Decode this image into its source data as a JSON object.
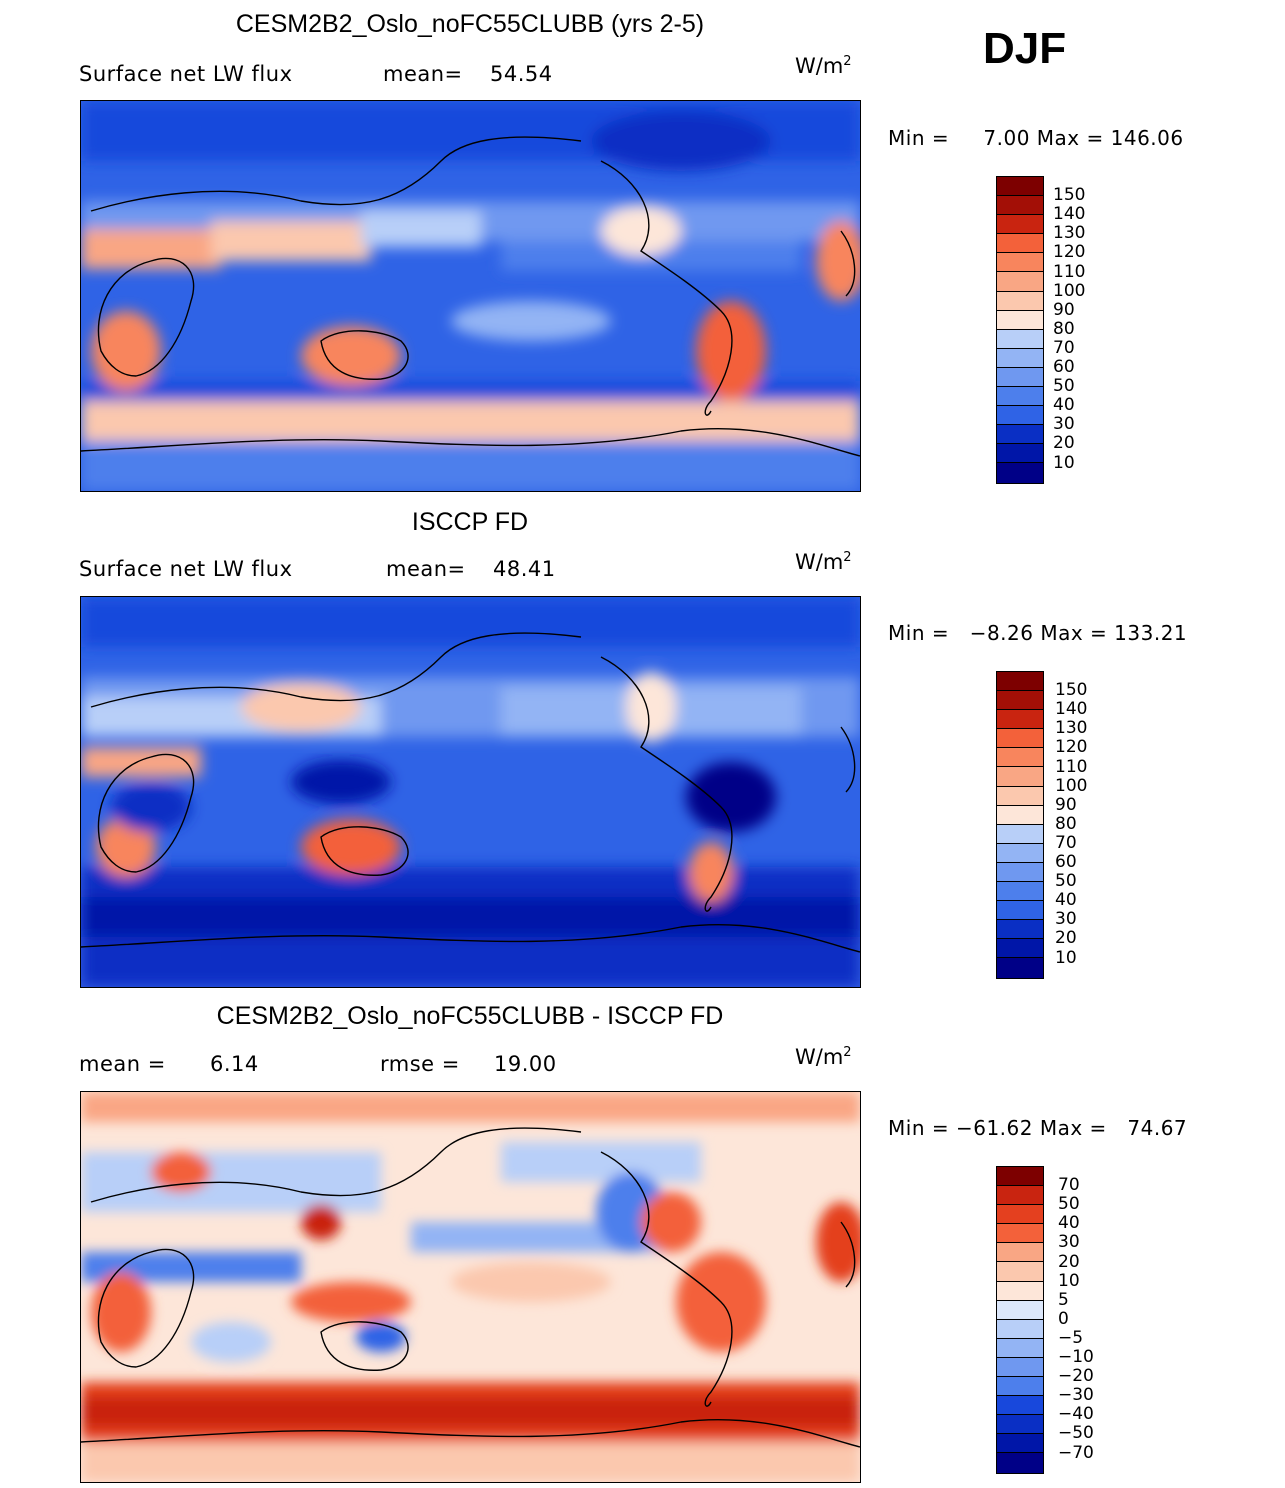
{
  "season": "DJF",
  "units_base": "W/m",
  "units_exp": "2",
  "palette_pos": [
    "#000087",
    "#0016a8",
    "#0a2fc4",
    "#1848dc",
    "#2f63e6",
    "#4d7fec",
    "#6f98f0",
    "#93b4f4",
    "#b8cff8",
    "#dde8fb",
    "#fde6d9",
    "#fbc8ae",
    "#f9a684",
    "#f8855d",
    "#f3613a",
    "#e4401f",
    "#c92410",
    "#a30f06",
    "#7d0000"
  ],
  "palette_diff": [
    "#000087",
    "#0016a8",
    "#0a2fc4",
    "#1848dc",
    "#2f63e6",
    "#4d7fec",
    "#6f98f0",
    "#93b4f4",
    "#b8cff8",
    "#dde8fb",
    "#fde6d9",
    "#fbc8ae",
    "#f9a684",
    "#f8855d",
    "#f3613a",
    "#e4401f",
    "#c92410",
    "#7d0000"
  ],
  "panels": [
    {
      "title": "CESM2B2_Oslo_noFC55CLUBB (yrs 2-5)",
      "left_label": "Surface net LW flux",
      "mean_label": "mean=",
      "mean_value": "54.54",
      "min_label": "Min =",
      "min_value": "7.00",
      "max_label": "Max =",
      "max_value": "146.06",
      "levels": [
        "150",
        "140",
        "130",
        "120",
        "110",
        "100",
        "90",
        "80",
        "70",
        "60",
        "50",
        "40",
        "30",
        "20",
        "10"
      ]
    },
    {
      "title": "ISCCP FD",
      "left_label": "Surface net LW flux",
      "mean_label": "mean=",
      "mean_value": "48.41",
      "min_label": "Min =",
      "min_value": "−8.26",
      "max_label": "Max =",
      "max_value": "133.21",
      "levels": [
        "150",
        "140",
        "130",
        "120",
        "110",
        "100",
        "90",
        "80",
        "70",
        "60",
        "50",
        "40",
        "30",
        "20",
        "10"
      ]
    },
    {
      "title": "CESM2B2_Oslo_noFC55CLUBB - ISCCP FD",
      "mean_label": "mean =",
      "mean_value": "6.14",
      "rmse_label": "rmse =",
      "rmse_value": "19.00",
      "min_label": "Min =",
      "min_value": "−61.62",
      "max_label": "Max =",
      "max_value": "74.67",
      "levels": [
        "70",
        "50",
        "40",
        "30",
        "20",
        "10",
        "5",
        "0",
        "−5",
        "−10",
        "−20",
        "−30",
        "−40",
        "−50",
        "−70"
      ]
    }
  ]
}
